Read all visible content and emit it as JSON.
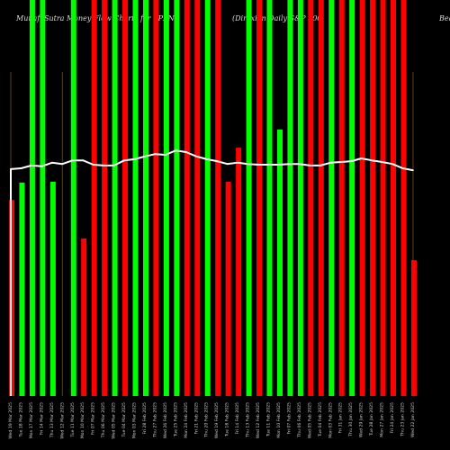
{
  "chart_data": {
    "type": "bar",
    "title": "MunafaSutra Money Flow Charts for SPXN",
    "subtitle": "(Direxion Daily S&P 500",
    "right_text": "Bea",
    "categories": [
      "Wed 19 Mar 2025",
      "Tue 18 Mar 2025",
      "Mon 17 Mar 2025",
      "Fri 14 Mar 2025",
      "Thu 13 Mar 2025",
      "Wed 12 Mar 2025",
      "Tue 11 Mar 2025",
      "Mon 10 Mar 2025",
      "Fri 07 Mar 2025",
      "Thu 06 Mar 2025",
      "Wed 05 Mar 2025",
      "Tue 04 Mar 2025",
      "Mon 03 Mar 2025",
      "Fri 28 Feb 2025",
      "Thu 27 Feb 2025",
      "Wed 26 Feb 2025",
      "Tue 25 Feb 2025",
      "Mon 24 Feb 2025",
      "Fri 21 Feb 2025",
      "Thu 20 Feb 2025",
      "Wed 19 Feb 2025",
      "Tue 18 Feb 2025",
      "Fri 14 Feb 2025",
      "Thu 13 Feb 2025",
      "Wed 12 Feb 2025",
      "Tue 11 Feb 2025",
      "Mon 10 Feb 2025",
      "Fri 07 Feb 2025",
      "Thu 06 Feb 2025",
      "Wed 05 Feb 2025",
      "Tue 04 Feb 2025",
      "Mon 03 Feb 2025",
      "Fri 31 Jan 2025",
      "Thu 30 Jan 2025",
      "Wed 29 Jan 2025",
      "Tue 28 Jan 2025",
      "Mon 27 Jan 2025",
      "Fri 24 Jan 2025",
      "Thu 23 Jan 2025",
      "Wed 22 Jan 2025"
    ],
    "values": [
      49.5,
      53.9,
      100,
      100,
      54.1,
      0,
      100,
      39.8,
      100,
      100,
      100,
      100,
      100,
      100,
      100,
      100,
      100,
      100,
      100,
      100,
      100,
      54.1,
      62.7,
      100,
      100,
      100,
      67.3,
      100,
      100,
      100,
      100,
      100,
      100,
      100,
      100,
      100,
      100,
      100,
      100,
      34.3
    ],
    "bar_colors": [
      "red",
      "green",
      "green",
      "green",
      "green",
      "red",
      "green",
      "red",
      "red",
      "red",
      "green",
      "red",
      "green",
      "green",
      "red",
      "green",
      "green",
      "red",
      "red",
      "green",
      "red",
      "red",
      "red",
      "green",
      "red",
      "green",
      "green",
      "green",
      "green",
      "red",
      "red",
      "green",
      "red",
      "green",
      "red",
      "red",
      "red",
      "red",
      "red",
      "red"
    ],
    "line": {
      "values": [
        57.3,
        57.5,
        58.2,
        58.0,
        58.9,
        58.6,
        59.5,
        59.5,
        58.4,
        58.2,
        58.2,
        59.5,
        59.8,
        60.5,
        61.1,
        60.9,
        62.0,
        61.6,
        60.5,
        59.8,
        59.3,
        58.6,
        58.9,
        58.6,
        58.4,
        58.4,
        58.4,
        58.6,
        58.6,
        58.2,
        58.2,
        58.9,
        59.1,
        59.3,
        60.0,
        59.5,
        59.1,
        58.6,
        57.5,
        57.0
      ]
    },
    "marker_lines": [
      0,
      5,
      39
    ],
    "ylim": [
      0,
      100
    ],
    "grid": false,
    "legend": "none"
  },
  "colors": {
    "background": "#000000",
    "up_bar": "#00ff00",
    "down_bar": "#ff0000",
    "line": "#ffffff",
    "marker_line": "#5e4010"
  }
}
